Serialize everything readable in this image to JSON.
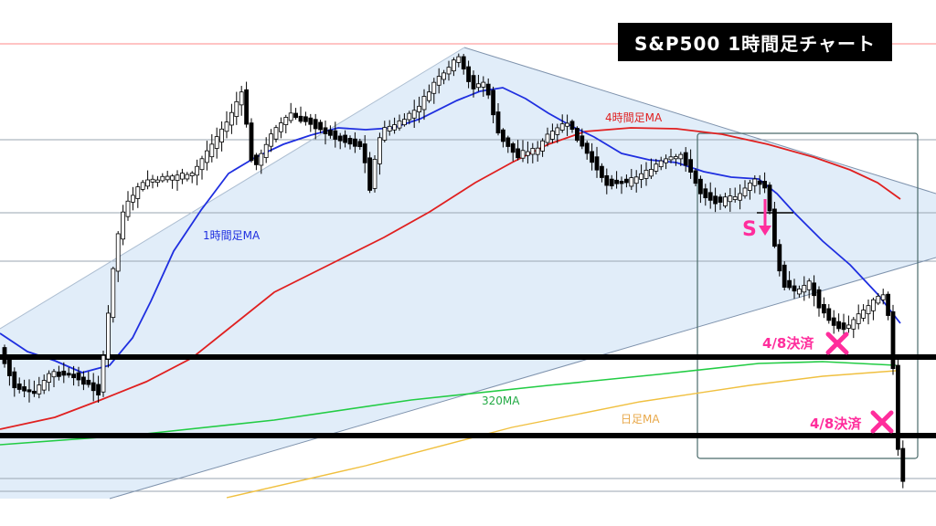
{
  "title": "S&P500 1時間足チャート",
  "colors": {
    "ma_1h": "#1f2fe0",
    "ma_4h": "#e02020",
    "ma_320": "#22cc44",
    "ma_daily": "#f0c040",
    "marker": "#ff2d9c",
    "triangle_fill": "#dceaf8",
    "triangle_edge": "#7f93ad",
    "focus_box": "#4a6a6a",
    "resistance": "#ff7777",
    "level_grey": "#9aa6b2"
  },
  "labels": {
    "ma_1h": "1時間足MA",
    "ma_4h": "4時間足MA",
    "ma_320": "320MA",
    "ma_daily": "日足MA",
    "sell_signal": "S",
    "settle_1": "4/8決済",
    "settle_2": "4/8決済"
  },
  "chart_data": {
    "type": "candlestick",
    "title": "S&P500 1時間足チャート",
    "series": [
      {
        "name": "1時間足MA",
        "color": "#1f2fe0"
      },
      {
        "name": "4時間足MA",
        "color": "#e02020"
      },
      {
        "name": "320MA",
        "color": "#22cc44"
      },
      {
        "name": "日足MA",
        "color": "#f0c040"
      }
    ],
    "annotations": [
      "S",
      "4/8決済",
      "4/8決済"
    ]
  }
}
